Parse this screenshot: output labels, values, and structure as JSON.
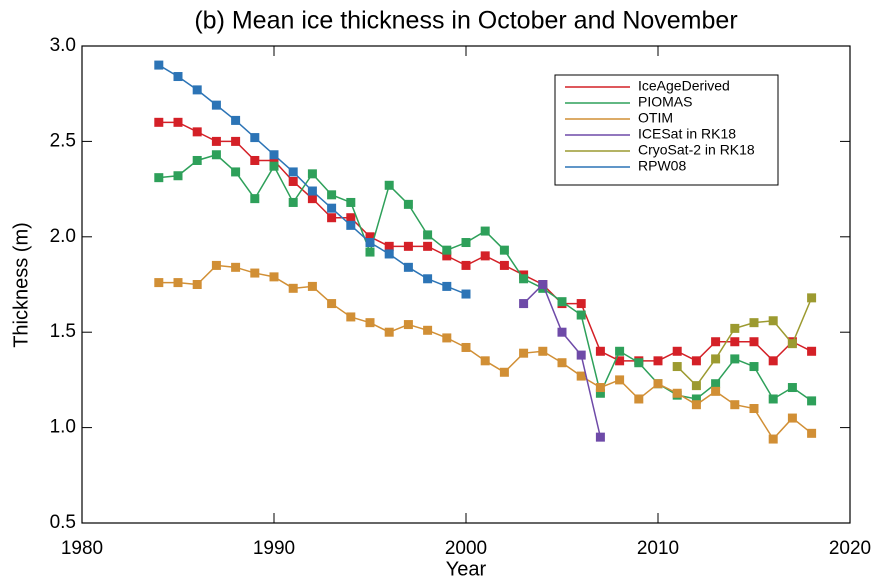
{
  "chart_data": {
    "type": "line",
    "title": "(b) Mean ice thickness in October and November",
    "x_label": "Year",
    "y_label": "Thickness (m)",
    "x": [
      1984,
      1985,
      1986,
      1987,
      1988,
      1989,
      1990,
      1991,
      1992,
      1993,
      1994,
      1995,
      1996,
      1997,
      1998,
      1999,
      2000,
      2001,
      2002,
      2003,
      2004,
      2005,
      2006,
      2007,
      2008,
      2009,
      2010,
      2011,
      2012,
      2013,
      2014,
      2015,
      2016,
      2017,
      2018
    ],
    "series": [
      {
        "name": "IceAgeDerived",
        "color": "#d42027",
        "values": [
          2.6,
          2.6,
          2.55,
          2.5,
          2.5,
          2.4,
          2.4,
          2.29,
          2.2,
          2.1,
          2.1,
          2.0,
          1.95,
          1.95,
          1.95,
          1.9,
          1.85,
          1.9,
          1.85,
          1.8,
          1.75,
          1.65,
          1.65,
          1.4,
          1.35,
          1.35,
          1.35,
          1.4,
          1.35,
          1.45,
          1.45,
          1.45,
          1.35,
          1.45,
          1.4
        ]
      },
      {
        "name": "PIOMAS",
        "color": "#2ea05a",
        "values": [
          2.31,
          2.32,
          2.4,
          2.43,
          2.34,
          2.2,
          2.37,
          2.18,
          2.33,
          2.22,
          2.18,
          1.92,
          2.27,
          2.17,
          2.01,
          1.93,
          1.97,
          2.03,
          1.93,
          1.78,
          1.73,
          1.66,
          1.59,
          1.18,
          1.4,
          1.34,
          1.23,
          1.17,
          1.15,
          1.23,
          1.36,
          1.32,
          1.15,
          1.21,
          1.14
        ]
      },
      {
        "name": "OTIM",
        "color": "#d18f35",
        "values": [
          1.76,
          1.76,
          1.75,
          1.85,
          1.84,
          1.81,
          1.79,
          1.73,
          1.74,
          1.65,
          1.58,
          1.55,
          1.5,
          1.54,
          1.51,
          1.47,
          1.42,
          1.35,
          1.29,
          1.39,
          1.4,
          1.34,
          1.27,
          1.21,
          1.25,
          1.15,
          1.23,
          1.18,
          1.12,
          1.19,
          1.12,
          1.1,
          0.94,
          1.05,
          0.97
        ]
      },
      {
        "name": "ICESat in RK18",
        "color": "#6e4aa8",
        "values": [
          null,
          null,
          null,
          null,
          null,
          null,
          null,
          null,
          null,
          null,
          null,
          null,
          null,
          null,
          null,
          null,
          null,
          null,
          null,
          1.65,
          1.75,
          1.5,
          1.38,
          0.95,
          null,
          null,
          null,
          null,
          null,
          null,
          null,
          null,
          null,
          null,
          null
        ]
      },
      {
        "name": "CryoSat-2 in RK18",
        "color": "#9c9a30",
        "values": [
          null,
          null,
          null,
          null,
          null,
          null,
          null,
          null,
          null,
          null,
          null,
          null,
          null,
          null,
          null,
          null,
          null,
          null,
          null,
          null,
          null,
          null,
          null,
          null,
          null,
          null,
          null,
          1.32,
          1.22,
          1.36,
          1.52,
          1.55,
          1.56,
          1.44,
          1.68
        ]
      },
      {
        "name": "RPW08",
        "color": "#2c74b6",
        "values": [
          2.9,
          2.84,
          2.77,
          2.69,
          2.61,
          2.52,
          2.43,
          2.34,
          2.24,
          2.15,
          2.06,
          1.97,
          1.91,
          1.84,
          1.78,
          1.74,
          1.7,
          null,
          null,
          null,
          null,
          null,
          null,
          null,
          null,
          null,
          null,
          null,
          null,
          null,
          null,
          null,
          null,
          null,
          null
        ]
      }
    ],
    "xlim": [
      1980,
      2020
    ],
    "xticks": [
      1980,
      1990,
      2000,
      2010,
      2020
    ],
    "ylim": [
      0.5,
      3.0
    ],
    "yticks": [
      0.5,
      {
        "value": 1.0,
        "label": "1.0"
      },
      1.5,
      {
        "value": 2.0,
        "label": "2.0"
      },
      2.5,
      {
        "value": 3.0,
        "label": "3.0"
      }
    ],
    "legend": "upper right",
    "grid": false
  }
}
